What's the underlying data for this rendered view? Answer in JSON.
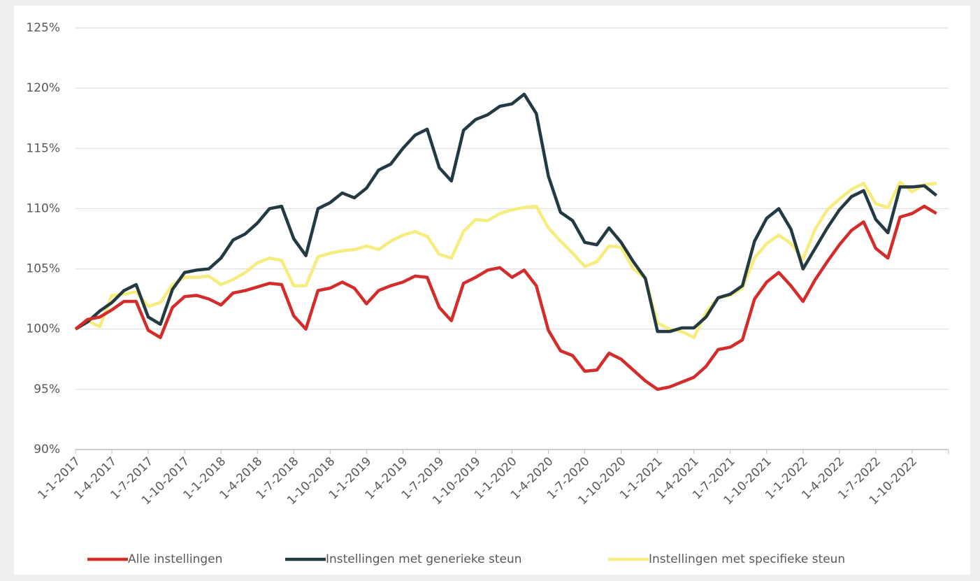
{
  "chart_data": {
    "type": "line",
    "categories": [
      "1-1-2017",
      null,
      null,
      "1-4-2017",
      null,
      null,
      "1-7-2017",
      null,
      null,
      "1-10-2017",
      null,
      null,
      "1-1-2018",
      null,
      null,
      "1-4-2018",
      null,
      null,
      "1-7-2018",
      null,
      null,
      "1-10-2018",
      null,
      null,
      "1-1-2019",
      null,
      null,
      "1-4-2019",
      null,
      null,
      "1-7-2019",
      null,
      null,
      "1-10-2019",
      null,
      null,
      "1-1-2020",
      null,
      null,
      "1-4-2020",
      null,
      null,
      "1-7-2020",
      null,
      null,
      "1-10-2020",
      null,
      null,
      "1-1-2021",
      null,
      null,
      "1-4-2021",
      null,
      null,
      "1-7-2021",
      null,
      null,
      "1-10-2021",
      null,
      null,
      "1-1-2022",
      null,
      null,
      "1-4-2022",
      null,
      null,
      "1-7-2022",
      null,
      null,
      "1-10-2022",
      null,
      null
    ],
    "series": [
      {
        "name": "Alle instellingen",
        "color": "#d42b2b",
        "values": [
          100,
          100.8,
          101.0,
          101.6,
          102.3,
          102.3,
          99.9,
          99.3,
          101.8,
          102.7,
          102.8,
          102.5,
          102.0,
          103.0,
          103.2,
          103.5,
          103.8,
          103.7,
          101.1,
          100.0,
          103.2,
          103.4,
          103.9,
          103.4,
          102.1,
          103.2,
          103.6,
          103.9,
          104.4,
          104.3,
          101.8,
          100.7,
          103.8,
          104.3,
          104.9,
          105.1,
          104.3,
          104.9,
          103.6,
          99.9,
          98.2,
          97.8,
          96.5,
          96.6,
          98.0,
          97.5,
          96.6,
          95.7,
          95.0,
          95.2,
          95.6,
          96.0,
          96.9,
          98.3,
          98.5,
          99.1,
          102.5,
          103.9,
          104.7,
          103.6,
          102.3,
          104.1,
          105.6,
          107.0,
          108.2,
          108.9,
          106.7,
          105.9,
          109.3,
          109.6,
          110.2,
          109.6
        ]
      },
      {
        "name": "Instellingen met generieke steun",
        "color": "#243a43",
        "values": [
          100,
          100.6,
          101.5,
          102.2,
          103.2,
          103.7,
          101.0,
          100.4,
          103.3,
          104.7,
          104.9,
          105.0,
          105.9,
          107.4,
          107.9,
          108.8,
          110.0,
          110.2,
          107.5,
          106.1,
          110.0,
          110.5,
          111.3,
          110.9,
          111.7,
          113.2,
          113.7,
          115.0,
          116.1,
          116.6,
          113.4,
          112.3,
          116.5,
          117.4,
          117.8,
          118.5,
          118.7,
          119.5,
          117.9,
          112.7,
          109.7,
          109.0,
          107.2,
          107.0,
          108.4,
          107.2,
          105.6,
          104.2,
          99.8,
          99.8,
          100.1,
          100.1,
          101.0,
          102.6,
          102.9,
          103.6,
          107.3,
          109.2,
          110.0,
          108.3,
          105.0,
          106.7,
          108.4,
          109.9,
          111.0,
          111.5,
          109.1,
          108.0,
          111.8,
          111.8,
          111.9,
          111.1
        ]
      },
      {
        "name": "Instellingen met specifieke steun",
        "color": "#f7ec7e",
        "values": [
          100,
          100.7,
          100.2,
          102.8,
          102.9,
          103.1,
          101.9,
          102.2,
          103.7,
          104.3,
          104.3,
          104.4,
          103.7,
          104.1,
          104.7,
          105.5,
          105.9,
          105.7,
          103.6,
          103.6,
          106.0,
          106.3,
          106.5,
          106.6,
          106.9,
          106.6,
          107.3,
          107.8,
          108.1,
          107.7,
          106.2,
          105.9,
          108.1,
          109.1,
          109.0,
          109.6,
          109.9,
          110.1,
          110.2,
          108.4,
          107.3,
          106.3,
          105.2,
          105.6,
          106.9,
          106.8,
          105.0,
          104.2,
          100.5,
          100.0,
          99.8,
          99.3,
          101.4,
          102.6,
          102.8,
          103.4,
          105.9,
          107.1,
          107.8,
          107.1,
          105.8,
          108.3,
          109.9,
          110.8,
          111.6,
          112.1,
          110.4,
          110.1,
          112.2,
          111.4,
          112.0,
          112.1
        ]
      }
    ],
    "ylim": [
      90,
      125
    ],
    "yticks": [
      {
        "value": 90,
        "label": "90%"
      },
      {
        "value": 95,
        "label": "95%"
      },
      {
        "value": 100,
        "label": "100%"
      },
      {
        "value": 105,
        "label": "105%"
      },
      {
        "value": 110,
        "label": "110%"
      },
      {
        "value": 115,
        "label": "115%"
      },
      {
        "value": 120,
        "label": "120%"
      },
      {
        "value": 125,
        "label": "125%"
      }
    ],
    "grid": true,
    "legend": "bottom"
  }
}
